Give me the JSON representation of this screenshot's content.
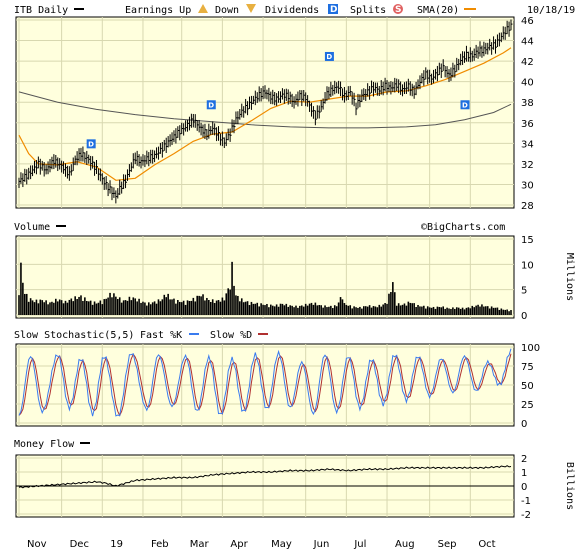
{
  "colors": {
    "background": "#FFFFFF",
    "panel": "#FFFFDD",
    "grid": "#D8D8B0",
    "price": "#000000",
    "sma20": "#F08C00",
    "long_ma": "#555555",
    "dividend_marker": "#1E6FE0",
    "stoch_fast": "#3A7BEF",
    "stoch_slow": "#B03030"
  },
  "icons": {
    "earnings_up": "triangle-up-icon",
    "earnings_down": "triangle-down-icon",
    "dividends": "d-square-icon",
    "splits": "s-circle-icon"
  },
  "header": {
    "symbol_label": "ITB Daily",
    "earnings_label": "Earnings Up",
    "down_label": "Down",
    "dividends_label": "Dividends",
    "dividend_letter": "D",
    "splits_label": "Splits",
    "split_letter": "S",
    "sma_label": "SMA(20)",
    "date": "10/18/19"
  },
  "watermark": "©BigCharts.com",
  "chart_data": [
    {
      "type": "ohlc",
      "title": "ITB Daily",
      "ylim": [
        28,
        46
      ],
      "yticks": [
        28,
        30,
        32,
        34,
        36,
        38,
        40,
        42,
        44,
        46
      ],
      "x_labels": [
        "Nov",
        "Dec",
        "19",
        "Feb",
        "Mar",
        "Apr",
        "May",
        "Jun",
        "Jul",
        "Aug",
        "Sep",
        "Oct"
      ],
      "price_path": [
        [
          0,
          30.3
        ],
        [
          5,
          31.0
        ],
        [
          10,
          32.0
        ],
        [
          14,
          31.4
        ],
        [
          18,
          32.3
        ],
        [
          22,
          31.8
        ],
        [
          26,
          31.0
        ],
        [
          29,
          32.4
        ],
        [
          32,
          33.0
        ],
        [
          36,
          32.4
        ],
        [
          40,
          31.5
        ],
        [
          44,
          30.2
        ],
        [
          48,
          29.3
        ],
        [
          50,
          28.8
        ],
        [
          52,
          29.6
        ],
        [
          55,
          30.4
        ],
        [
          58,
          31.8
        ],
        [
          60,
          32.6
        ],
        [
          63,
          32.2
        ],
        [
          66,
          32.5
        ],
        [
          70,
          32.8
        ],
        [
          74,
          33.5
        ],
        [
          78,
          34.3
        ],
        [
          82,
          35.0
        ],
        [
          86,
          35.6
        ],
        [
          90,
          36.3
        ],
        [
          94,
          35.4
        ],
        [
          97,
          34.9
        ],
        [
          100,
          35.5
        ],
        [
          103,
          34.8
        ],
        [
          106,
          34.1
        ],
        [
          109,
          35.0
        ],
        [
          112,
          36.3
        ],
        [
          115,
          37.1
        ],
        [
          118,
          37.6
        ],
        [
          121,
          38.2
        ],
        [
          124,
          38.7
        ],
        [
          127,
          39.0
        ],
        [
          130,
          38.5
        ],
        [
          133,
          38.3
        ],
        [
          136,
          38.7
        ],
        [
          139,
          38.6
        ],
        [
          142,
          38.0
        ],
        [
          145,
          38.6
        ],
        [
          148,
          38.4
        ],
        [
          151,
          37.3
        ],
        [
          153,
          36.6
        ],
        [
          156,
          37.5
        ],
        [
          159,
          38.8
        ],
        [
          162,
          39.3
        ],
        [
          165,
          39.5
        ],
        [
          168,
          38.6
        ],
        [
          171,
          39.0
        ],
        [
          174,
          37.6
        ],
        [
          177,
          38.6
        ],
        [
          180,
          39.0
        ],
        [
          183,
          39.4
        ],
        [
          186,
          39.2
        ],
        [
          189,
          39.6
        ],
        [
          192,
          39.4
        ],
        [
          195,
          39.7
        ],
        [
          198,
          39.2
        ],
        [
          201,
          39.6
        ],
        [
          204,
          39.0
        ],
        [
          207,
          40.0
        ],
        [
          210,
          40.7
        ],
        [
          213,
          40.3
        ],
        [
          216,
          40.9
        ],
        [
          219,
          41.4
        ],
        [
          222,
          40.6
        ],
        [
          225,
          41.2
        ],
        [
          228,
          42.1
        ],
        [
          231,
          42.6
        ],
        [
          234,
          42.5
        ],
        [
          237,
          43.0
        ],
        [
          240,
          43.1
        ],
        [
          243,
          43.4
        ],
        [
          246,
          43.6
        ],
        [
          249,
          44.4
        ],
        [
          252,
          45.1
        ],
        [
          254,
          45.4
        ]
      ],
      "sma20_path": [
        [
          0,
          34.8
        ],
        [
          5,
          33.0
        ],
        [
          10,
          32.0
        ],
        [
          20,
          31.9
        ],
        [
          30,
          32.2
        ],
        [
          40,
          31.7
        ],
        [
          50,
          30.4
        ],
        [
          60,
          30.6
        ],
        [
          70,
          31.9
        ],
        [
          80,
          33.0
        ],
        [
          90,
          34.2
        ],
        [
          100,
          34.9
        ],
        [
          110,
          35.1
        ],
        [
          120,
          36.2
        ],
        [
          130,
          37.4
        ],
        [
          140,
          38.1
        ],
        [
          150,
          38.0
        ],
        [
          160,
          38.3
        ],
        [
          170,
          38.6
        ],
        [
          180,
          38.6
        ],
        [
          190,
          39.0
        ],
        [
          200,
          39.1
        ],
        [
          210,
          39.6
        ],
        [
          220,
          40.2
        ],
        [
          230,
          41.0
        ],
        [
          240,
          41.8
        ],
        [
          250,
          42.8
        ],
        [
          254,
          43.3
        ]
      ],
      "long_ma_path": [
        [
          0,
          39.0
        ],
        [
          20,
          38.0
        ],
        [
          40,
          37.3
        ],
        [
          60,
          36.8
        ],
        [
          80,
          36.4
        ],
        [
          100,
          36.1
        ],
        [
          120,
          35.8
        ],
        [
          140,
          35.6
        ],
        [
          160,
          35.5
        ],
        [
          180,
          35.5
        ],
        [
          200,
          35.6
        ],
        [
          215,
          35.8
        ],
        [
          230,
          36.3
        ],
        [
          245,
          37.0
        ],
        [
          254,
          37.8
        ]
      ],
      "dividend_markers": [
        [
          37,
          34.0
        ],
        [
          99,
          37.8
        ],
        [
          160,
          42.5
        ],
        [
          230,
          37.8
        ]
      ]
    },
    {
      "type": "bar",
      "title": "Volume",
      "ylabel": "Millions",
      "ylim": [
        0,
        15
      ],
      "yticks": [
        0,
        5,
        10,
        15
      ],
      "volume_profile": [
        [
          0,
          5.6
        ],
        [
          1,
          10.5
        ],
        [
          2,
          7.2
        ],
        [
          3,
          4.8
        ],
        [
          5,
          3.6
        ],
        [
          8,
          3.0
        ],
        [
          12,
          3.2
        ],
        [
          16,
          2.6
        ],
        [
          20,
          3.4
        ],
        [
          24,
          2.8
        ],
        [
          28,
          3.6
        ],
        [
          32,
          4.0
        ],
        [
          36,
          3.0
        ],
        [
          40,
          2.6
        ],
        [
          44,
          3.2
        ],
        [
          48,
          4.8
        ],
        [
          50,
          4.0
        ],
        [
          54,
          3.0
        ],
        [
          58,
          3.8
        ],
        [
          62,
          3.2
        ],
        [
          66,
          2.4
        ],
        [
          70,
          2.8
        ],
        [
          74,
          3.4
        ],
        [
          76,
          4.8
        ],
        [
          78,
          3.6
        ],
        [
          82,
          3.0
        ],
        [
          86,
          2.8
        ],
        [
          90,
          3.4
        ],
        [
          94,
          4.4
        ],
        [
          98,
          3.2
        ],
        [
          102,
          3.0
        ],
        [
          106,
          3.6
        ],
        [
          109,
          6.5
        ],
        [
          110,
          10.5
        ],
        [
          111,
          7.0
        ],
        [
          112,
          4.2
        ],
        [
          116,
          3.0
        ],
        [
          120,
          2.6
        ],
        [
          124,
          2.4
        ],
        [
          128,
          2.2
        ],
        [
          132,
          2.0
        ],
        [
          136,
          2.4
        ],
        [
          140,
          2.0
        ],
        [
          144,
          1.8
        ],
        [
          148,
          2.2
        ],
        [
          152,
          2.6
        ],
        [
          156,
          2.0
        ],
        [
          160,
          1.8
        ],
        [
          164,
          2.0
        ],
        [
          167,
          4.4
        ],
        [
          168,
          2.4
        ],
        [
          172,
          1.8
        ],
        [
          176,
          1.6
        ],
        [
          180,
          2.0
        ],
        [
          184,
          1.8
        ],
        [
          188,
          2.2
        ],
        [
          190,
          2.8
        ],
        [
          193,
          7.0
        ],
        [
          195,
          2.4
        ],
        [
          198,
          2.2
        ],
        [
          202,
          2.8
        ],
        [
          206,
          2.0
        ],
        [
          210,
          1.8
        ],
        [
          214,
          1.6
        ],
        [
          218,
          1.8
        ],
        [
          222,
          1.4
        ],
        [
          226,
          1.6
        ],
        [
          230,
          1.4
        ],
        [
          234,
          1.8
        ],
        [
          238,
          2.2
        ],
        [
          242,
          1.8
        ],
        [
          246,
          1.6
        ],
        [
          250,
          1.2
        ],
        [
          254,
          1.0
        ]
      ]
    },
    {
      "type": "line",
      "title": "Slow Stochastic(5,5)",
      "series_labels": [
        "Fast %K",
        "Slow %D"
      ],
      "ylim": [
        0,
        100
      ],
      "yticks": [
        0,
        25,
        50,
        75,
        100
      ],
      "oscillation_points": [
        0,
        6,
        12,
        20,
        26,
        32,
        38,
        44,
        51,
        58,
        66,
        72,
        79,
        86,
        92,
        98,
        104,
        110,
        116,
        122,
        128,
        134,
        140,
        146,
        152,
        158,
        164,
        170,
        176,
        182,
        188,
        194,
        200,
        206,
        212,
        218,
        224,
        230,
        236,
        242,
        248,
        254
      ],
      "oscillation_values": [
        10,
        88,
        15,
        90,
        20,
        85,
        12,
        88,
        8,
        92,
        18,
        90,
        22,
        88,
        15,
        86,
        10,
        84,
        14,
        90,
        18,
        92,
        20,
        80,
        12,
        90,
        15,
        88,
        20,
        84,
        25,
        90,
        30,
        88,
        35,
        85,
        40,
        88,
        42,
        80,
        50,
        95
      ]
    },
    {
      "type": "line",
      "title": "Money Flow",
      "ylabel": "Billions",
      "ylim": [
        -2,
        2
      ],
      "yticks": [
        -2,
        -1,
        0,
        1,
        2
      ],
      "values_path": [
        [
          0,
          -0.1
        ],
        [
          10,
          0.0
        ],
        [
          20,
          0.1
        ],
        [
          30,
          0.2
        ],
        [
          40,
          0.3
        ],
        [
          45,
          0.2
        ],
        [
          50,
          0.0
        ],
        [
          55,
          0.2
        ],
        [
          60,
          0.4
        ],
        [
          70,
          0.5
        ],
        [
          80,
          0.6
        ],
        [
          90,
          0.6
        ],
        [
          100,
          0.8
        ],
        [
          110,
          0.9
        ],
        [
          120,
          1.0
        ],
        [
          130,
          1.0
        ],
        [
          140,
          1.1
        ],
        [
          150,
          1.1
        ],
        [
          160,
          1.2
        ],
        [
          170,
          1.1
        ],
        [
          180,
          1.2
        ],
        [
          190,
          1.2
        ],
        [
          200,
          1.3
        ],
        [
          210,
          1.3
        ],
        [
          220,
          1.3
        ],
        [
          230,
          1.3
        ],
        [
          240,
          1.3
        ],
        [
          250,
          1.4
        ],
        [
          254,
          1.4
        ]
      ]
    }
  ]
}
